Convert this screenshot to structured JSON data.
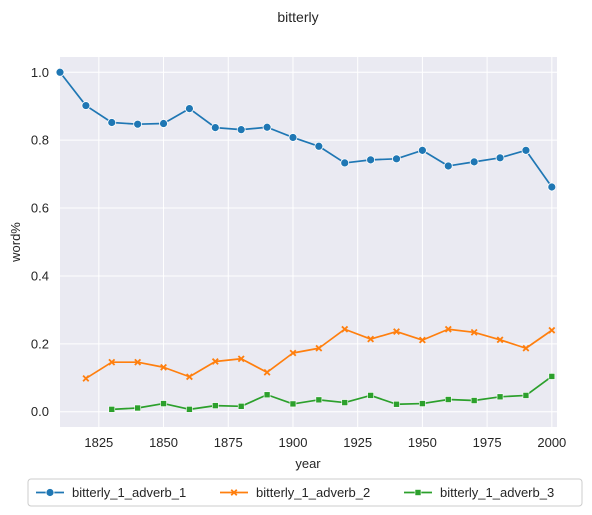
{
  "chart_data": {
    "type": "line",
    "title": "bitterly",
    "xlabel": "year",
    "ylabel": "word%",
    "xlim": [
      1810,
      2002
    ],
    "ylim": [
      -0.045,
      1.045
    ],
    "xticks": [
      1825,
      1850,
      1875,
      1900,
      1925,
      1950,
      1975,
      2000
    ],
    "yticks": [
      0.0,
      0.2,
      0.4,
      0.6,
      0.8,
      1.0
    ],
    "xtick_labels": [
      "1825",
      "1850",
      "1875",
      "1900",
      "1925",
      "1950",
      "1975",
      "2000"
    ],
    "ytick_labels": [
      "0.0",
      "0.2",
      "0.4",
      "0.6",
      "0.8",
      "1.0"
    ],
    "grid": true,
    "legend_position": "bottom-center",
    "series": [
      {
        "name": "bitterly_1_adverb_1",
        "color": "#1f77b4",
        "marker": "circle",
        "x": [
          1810,
          1820,
          1830,
          1840,
          1850,
          1860,
          1870,
          1880,
          1890,
          1900,
          1910,
          1920,
          1930,
          1940,
          1950,
          1960,
          1970,
          1980,
          1990,
          2000
        ],
        "y": [
          1.0,
          0.902,
          0.852,
          0.847,
          0.849,
          0.893,
          0.837,
          0.831,
          0.838,
          0.808,
          0.782,
          0.733,
          0.742,
          0.745,
          0.77,
          0.724,
          0.736,
          0.748,
          0.77,
          0.662
        ]
      },
      {
        "name": "bitterly_1_adverb_2",
        "color": "#ff7f0e",
        "marker": "x",
        "x": [
          1820,
          1830,
          1840,
          1850,
          1860,
          1870,
          1880,
          1890,
          1900,
          1910,
          1920,
          1930,
          1940,
          1950,
          1960,
          1970,
          1980,
          1990,
          2000
        ],
        "y": [
          0.098,
          0.146,
          0.146,
          0.131,
          0.103,
          0.148,
          0.156,
          0.116,
          0.173,
          0.187,
          0.243,
          0.214,
          0.236,
          0.211,
          0.243,
          0.234,
          0.212,
          0.187,
          0.24
        ]
      },
      {
        "name": "bitterly_1_adverb_3",
        "color": "#2ca02c",
        "marker": "square",
        "x": [
          1830,
          1840,
          1850,
          1860,
          1870,
          1880,
          1890,
          1900,
          1910,
          1920,
          1930,
          1940,
          1950,
          1960,
          1970,
          1980,
          1990,
          2000
        ],
        "y": [
          0.007,
          0.011,
          0.024,
          0.007,
          0.018,
          0.016,
          0.05,
          0.023,
          0.035,
          0.027,
          0.048,
          0.022,
          0.024,
          0.036,
          0.033,
          0.044,
          0.048,
          0.104
        ]
      }
    ]
  }
}
